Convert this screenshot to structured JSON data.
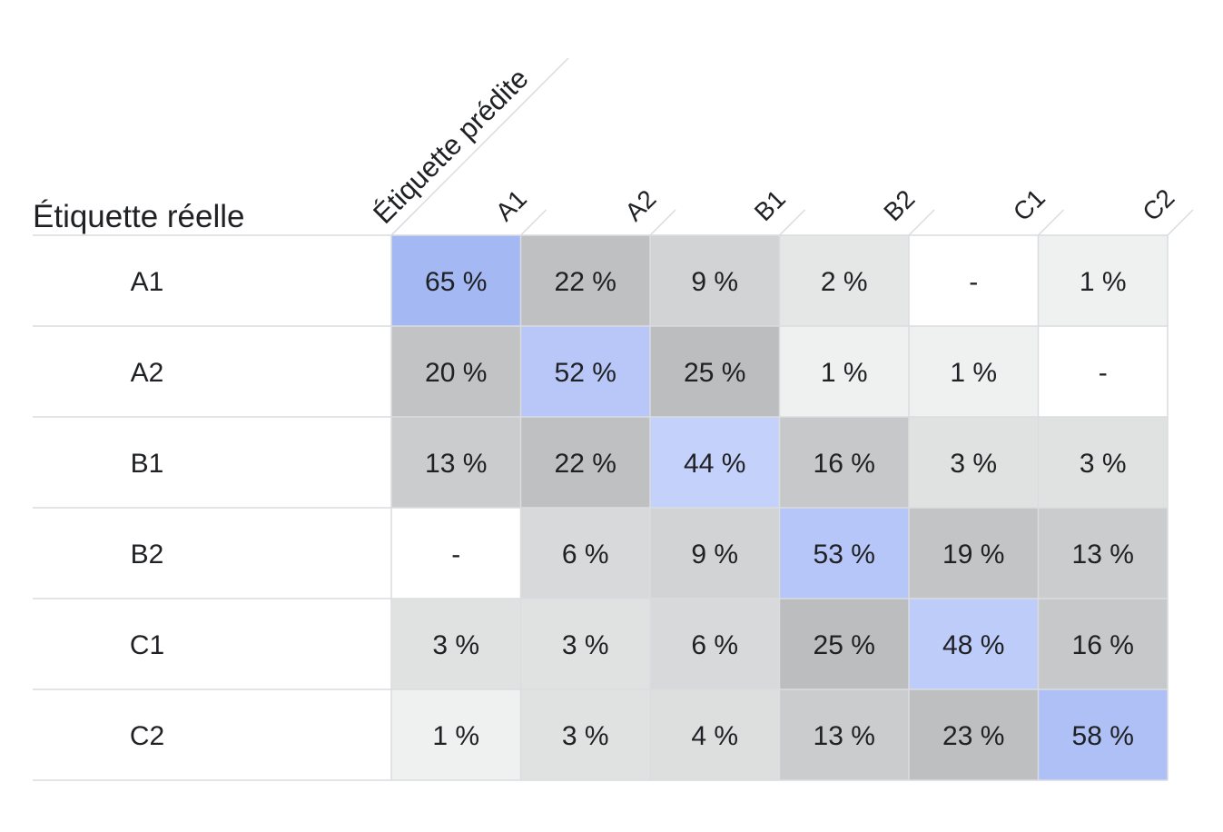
{
  "chart_data": {
    "type": "heatmap",
    "row_axis_label": "Étiquette réelle",
    "col_axis_label": "Étiquette prédite",
    "rows": [
      "A1",
      "A2",
      "B1",
      "B2",
      "C1",
      "C2"
    ],
    "columns": [
      "A1",
      "A2",
      "B1",
      "B2",
      "C1",
      "C2"
    ],
    "values": [
      [
        65,
        22,
        9,
        2,
        null,
        1
      ],
      [
        20,
        52,
        25,
        1,
        1,
        null
      ],
      [
        13,
        22,
        44,
        16,
        3,
        3
      ],
      [
        null,
        6,
        9,
        53,
        19,
        13
      ],
      [
        3,
        3,
        6,
        25,
        48,
        16
      ],
      [
        1,
        3,
        4,
        13,
        23,
        58
      ]
    ],
    "value_suffix": " %",
    "missing_label": "-",
    "colors": {
      "diagonal_max": "#a4b8f3",
      "diagonal_min": "#c4d1fb",
      "offdiag_max": "#bcbdbf",
      "offdiag_min": "#eff1f0",
      "empty": "#ffffff",
      "grid_line": "#dadce0",
      "text": "#202124"
    }
  }
}
